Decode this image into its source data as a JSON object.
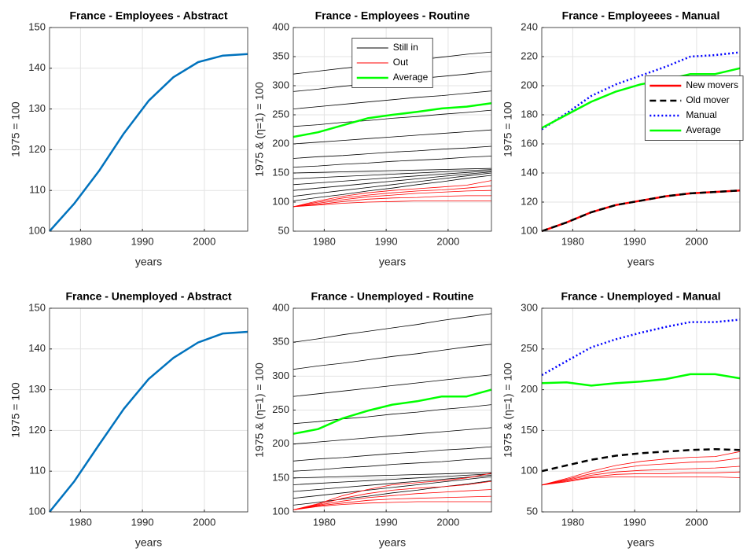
{
  "chart_data": [
    {
      "type": "line",
      "title": "France - Employees - Abstract",
      "xlabel": "years",
      "ylabel": "1975 = 100",
      "x": [
        1975,
        1979,
        1983,
        1987,
        1991,
        1995,
        1999,
        2003,
        2007
      ],
      "xlim": [
        1975,
        2007
      ],
      "xticks": [
        1980,
        1990,
        2000
      ],
      "ylim": [
        100,
        150
      ],
      "yticks": [
        100,
        110,
        120,
        130,
        140,
        150
      ],
      "grid": true,
      "series": [
        {
          "color": "#0072bd",
          "values": [
            100,
            106.8,
            114.8,
            124,
            132,
            137.8,
            141.5,
            143.1,
            143.5
          ]
        }
      ]
    },
    {
      "type": "line",
      "title": "France - Employees - Routine",
      "xlabel": "years",
      "ylabel": "1975 & (η=1) = 100",
      "x": [
        1975,
        1979,
        1983,
        1987,
        1991,
        1995,
        1999,
        2003,
        2007
      ],
      "xlim": [
        1975,
        2007
      ],
      "xticks": [
        1980,
        1990,
        2000
      ],
      "ylim": [
        50,
        400
      ],
      "yticks": [
        50,
        100,
        150,
        200,
        250,
        300,
        350,
        400
      ],
      "grid": true,
      "legend": "north",
      "series": [
        {
          "name": "Still in",
          "color": "#000000",
          "lines": [
            [
              320,
              325,
              330,
              334,
              339,
              344,
              349,
              354,
              358
            ],
            [
              290,
              294,
              299,
              303,
              307,
              312,
              316,
              320,
              325
            ],
            [
              260,
              264,
              268,
              272,
              276,
              280,
              283,
              287,
              291
            ],
            [
              230,
              233,
              237,
              240,
              244,
              247,
              251,
              254,
              258
            ],
            [
              200,
              203,
              206,
              209,
              212,
              215,
              218,
              221,
              224
            ],
            [
              175,
              178,
              180,
              183,
              186,
              188,
              191,
              193,
              196
            ],
            [
              160,
              162,
              165,
              167,
              170,
              172,
              174,
              177,
              179
            ],
            [
              150,
              151,
              152,
              153,
              154,
              155,
              156,
              157,
              158
            ],
            [
              140,
              142,
              144,
              146,
              148,
              150,
              152,
              154,
              156
            ],
            [
              130,
              133,
              136,
              139,
              142,
              145,
              148,
              151,
              154
            ],
            [
              120,
              124,
              128,
              132,
              136,
              140,
              144,
              148,
              152
            ],
            [
              110,
              115,
              120,
              125,
              130,
              135,
              140,
              145,
              150
            ],
            [
              102,
              108,
              113,
              119,
              124,
              130,
              135,
              141,
              146
            ]
          ]
        },
        {
          "name": "Out",
          "color": "#ff0000",
          "lines": [
            [
              92,
              102,
              110,
              116,
              120,
              123,
              126,
              129,
              137
            ],
            [
              92,
              100,
              107,
              112,
              116,
              119,
              121,
              124,
              128
            ],
            [
              92,
              98,
              104,
              109,
              112,
              115,
              117,
              119,
              120
            ],
            [
              92,
              96,
              101,
              105,
              107,
              108,
              110,
              111,
              111
            ],
            [
              92,
              95,
              98,
              100,
              101,
              102,
              102,
              102,
              102
            ]
          ]
        },
        {
          "name": "Average",
          "color": "#00ff00",
          "values": [
            212,
            220,
            232,
            244,
            250,
            255,
            261,
            264,
            270
          ]
        }
      ]
    },
    {
      "type": "line",
      "title": "France - Employeees - Manual",
      "xlabel": "years",
      "ylabel": "1975 = 100",
      "x": [
        1975,
        1979,
        1983,
        1987,
        1991,
        1995,
        1999,
        2003,
        2007
      ],
      "xlim": [
        1975,
        2007
      ],
      "xticks": [
        1980,
        1990,
        2000
      ],
      "ylim": [
        100,
        240
      ],
      "yticks": [
        100,
        120,
        140,
        160,
        180,
        200,
        220,
        240
      ],
      "grid": true,
      "legend": "east",
      "series": [
        {
          "name": "New movers",
          "color": "#ff0000",
          "values": [
            100,
            106,
            113,
            118,
            121,
            124,
            126,
            127,
            128
          ]
        },
        {
          "name": "Old mover",
          "color": "#000000",
          "style": "dashed",
          "values": [
            100,
            106,
            113,
            118,
            121,
            124,
            126,
            127,
            128
          ]
        },
        {
          "name": "Manual",
          "color": "#0000ff",
          "style": "dotted",
          "values": [
            170,
            181,
            193,
            201,
            207,
            213,
            220,
            221,
            223
          ]
        },
        {
          "name": "Average",
          "color": "#00ff00",
          "values": [
            171,
            180,
            189,
            196,
            201,
            204,
            208,
            208,
            212
          ]
        }
      ]
    },
    {
      "type": "line",
      "title": "France - Unemployed - Abstract",
      "xlabel": "years",
      "ylabel": "1975 = 100",
      "x": [
        1975,
        1979,
        1983,
        1987,
        1991,
        1995,
        1999,
        2003,
        2007
      ],
      "xlim": [
        1975,
        2007
      ],
      "xticks": [
        1980,
        1990,
        2000
      ],
      "ylim": [
        100,
        150
      ],
      "yticks": [
        100,
        110,
        120,
        130,
        140,
        150
      ],
      "grid": true,
      "series": [
        {
          "color": "#0072bd",
          "values": [
            100,
            107.5,
            116.5,
            125.3,
            132.6,
            137.8,
            141.6,
            143.8,
            144.2
          ]
        }
      ]
    },
    {
      "type": "line",
      "title": "France - Unemployed - Routine",
      "xlabel": "years",
      "ylabel": "1975 & (η=1) = 100",
      "x": [
        1975,
        1979,
        1983,
        1987,
        1991,
        1995,
        1999,
        2003,
        2007
      ],
      "xlim": [
        1975,
        2007
      ],
      "xticks": [
        1980,
        1990,
        2000
      ],
      "ylim": [
        100,
        400
      ],
      "yticks": [
        100,
        150,
        200,
        250,
        300,
        350,
        400
      ],
      "grid": true,
      "series": [
        {
          "color": "#000000",
          "lines": [
            [
              350,
              355,
              361,
              366,
              371,
              376,
              382,
              387,
              392
            ],
            [
              310,
              315,
              319,
              324,
              329,
              333,
              338,
              343,
              347
            ],
            [
              270,
              274,
              278,
              282,
              286,
              290,
              294,
              298,
              302
            ],
            [
              230,
              233,
              237,
              240,
              244,
              247,
              251,
              254,
              258
            ],
            [
              200,
              203,
              206,
              209,
              212,
              215,
              218,
              221,
              224
            ],
            [
              175,
              178,
              180,
              183,
              186,
              188,
              191,
              193,
              196
            ],
            [
              160,
              162,
              165,
              167,
              170,
              172,
              174,
              177,
              179
            ],
            [
              150,
              151,
              152,
              153,
              154,
              155,
              156,
              157,
              158
            ],
            [
              140,
              142,
              144,
              146,
              148,
              150,
              152,
              154,
              156
            ],
            [
              130,
              133,
              136,
              139,
              142,
              145,
              148,
              151,
              154
            ],
            [
              120,
              124,
              128,
              132,
              136,
              140,
              144,
              148,
              152
            ],
            [
              110,
              114,
              119,
              123,
              128,
              132,
              137,
              141,
              146
            ]
          ]
        },
        {
          "color": "#ff0000",
          "lines": [
            [
              103,
              112,
              124,
              133,
              140,
              143,
              146,
              150,
              157
            ],
            [
              103,
              111,
              120,
              127,
              132,
              135,
              137,
              140,
              145
            ],
            [
              103,
              110,
              116,
              121,
              124,
              127,
              129,
              131,
              133
            ],
            [
              103,
              109,
              113,
              117,
              119,
              120,
              121,
              122,
              123
            ],
            [
              103,
              108,
              111,
              113,
              114,
              115,
              115,
              115,
              115
            ]
          ]
        },
        {
          "color": "#00ff00",
          "values": [
            215,
            222,
            238,
            249,
            258,
            263,
            270,
            270,
            280
          ]
        }
      ]
    },
    {
      "type": "line",
      "title": "France - Unemployed - Manual",
      "xlabel": "years",
      "ylabel": "1975 & (η=1) = 100",
      "x": [
        1975,
        1979,
        1983,
        1987,
        1991,
        1995,
        1999,
        2003,
        2007
      ],
      "xlim": [
        1975,
        2007
      ],
      "xticks": [
        1980,
        1990,
        2000
      ],
      "ylim": [
        50,
        300
      ],
      "yticks": [
        50,
        100,
        150,
        200,
        250,
        300
      ],
      "grid": true,
      "series": [
        {
          "color": "#ff0000",
          "lines": [
            [
              83,
              91,
              100,
              107,
              112,
              115,
              117,
              118,
              124
            ],
            [
              83,
              90,
              97,
              103,
              107,
              109,
              111,
              112,
              116
            ],
            [
              83,
              89,
              95,
              99,
              101,
              102,
              103,
              104,
              106
            ],
            [
              83,
              88,
              93,
              96,
              97,
              97,
              98,
              98,
              99
            ],
            [
              83,
              87,
              92,
              93,
              93,
              93,
              93,
              93,
              92
            ]
          ]
        },
        {
          "color": "#000000",
          "style": "dashed",
          "values": [
            100,
            107,
            114,
            119,
            122,
            124,
            126,
            127,
            126
          ]
        },
        {
          "color": "#0000ff",
          "style": "dotted",
          "values": [
            218,
            235,
            252,
            262,
            270,
            277,
            283,
            283,
            286
          ]
        },
        {
          "color": "#00ff00",
          "values": [
            208,
            209,
            205,
            208,
            210,
            213,
            219,
            219,
            214
          ]
        }
      ]
    }
  ]
}
